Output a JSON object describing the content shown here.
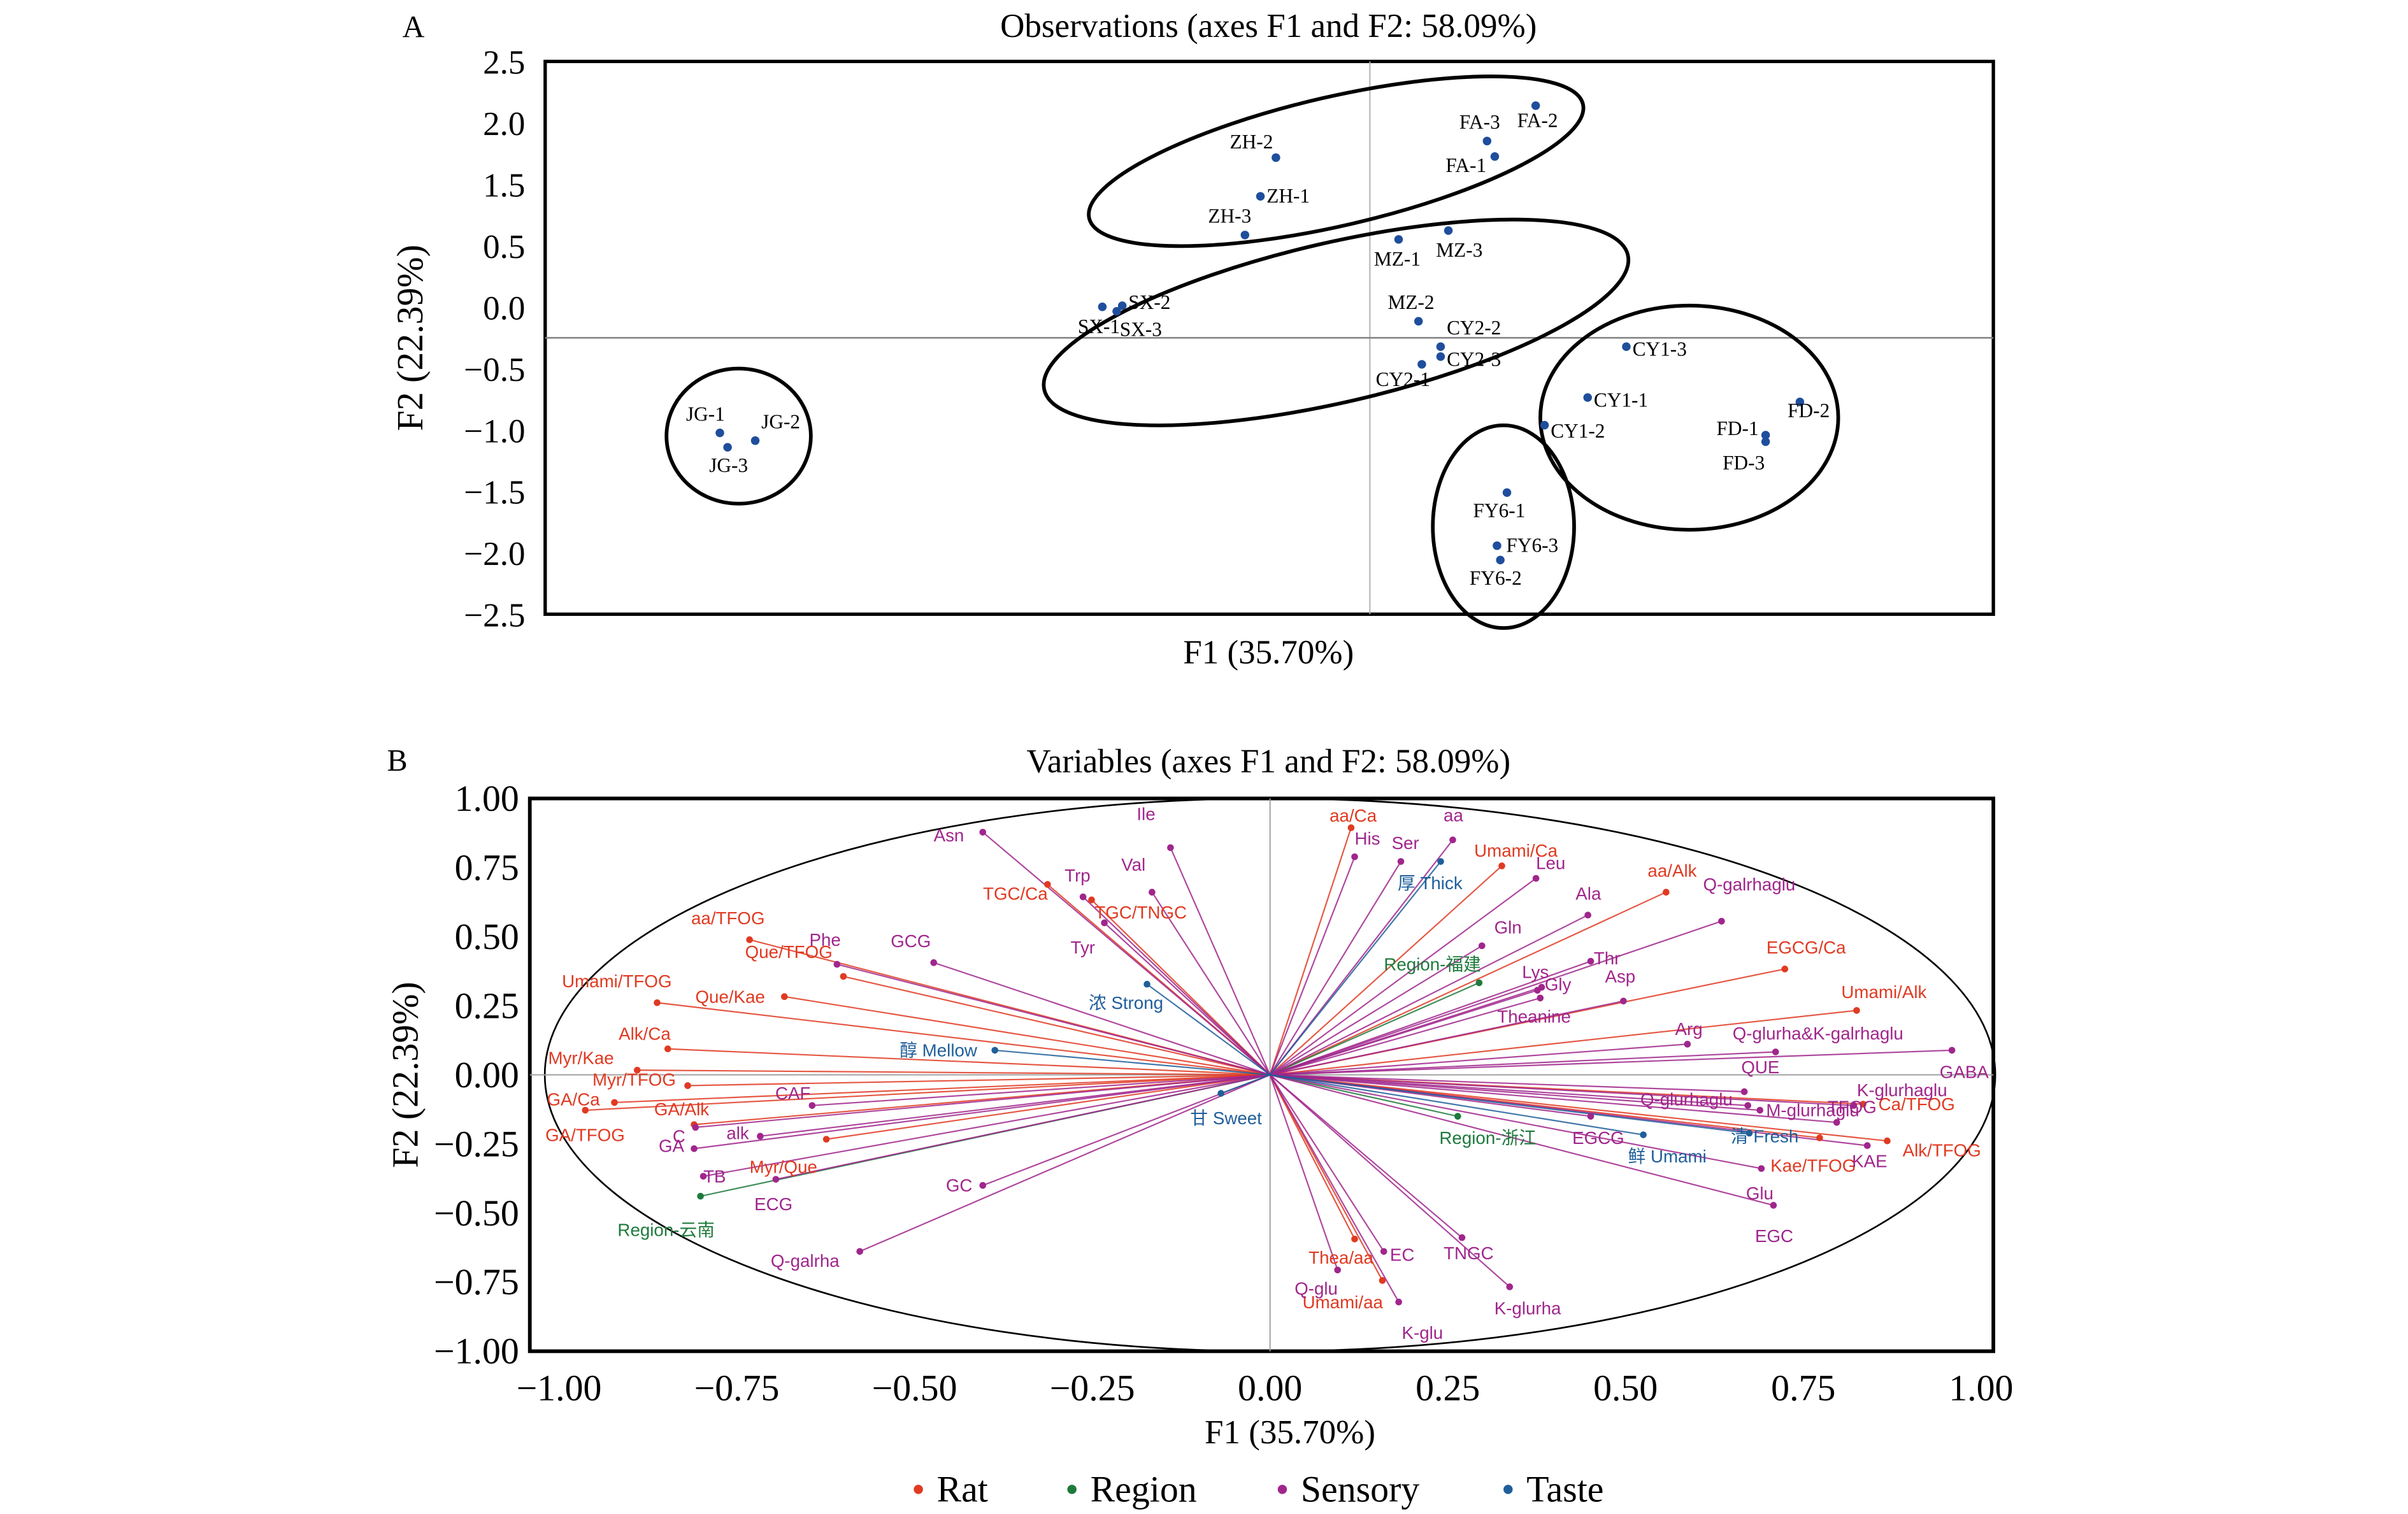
{
  "chart_data": [
    {
      "type": "scatter",
      "panel_label": "A",
      "title": "Observations (axes F1 and F2: 58.09%)",
      "xlabel": "F1 (35.70%)",
      "ylabel": "F2 (22.39%)",
      "ytick_labels": [
        "2.5",
        "2.0",
        "1.5",
        "0.5",
        "0.0",
        "−0.5",
        "−1.0",
        "−1.5",
        "−2.0",
        "−2.5"
      ],
      "ylim": [
        -2.5,
        2.5
      ],
      "xlim": [
        -7.46,
        5.64
      ],
      "point_color": "#1f4e9c",
      "points": [
        {
          "label": "JG-1",
          "x": -5.88,
          "y": -0.86
        },
        {
          "label": "JG-2",
          "x": -5.56,
          "y": -0.93
        },
        {
          "label": "JG-3",
          "x": -5.81,
          "y": -0.99
        },
        {
          "label": "SX-1",
          "x": -2.42,
          "y": 0.28
        },
        {
          "label": "SX-2",
          "x": -2.24,
          "y": 0.29
        },
        {
          "label": "SX-3",
          "x": -2.29,
          "y": 0.24
        },
        {
          "label": "ZH-1",
          "x": -0.99,
          "y": 1.28
        },
        {
          "label": "ZH-2",
          "x": -0.85,
          "y": 1.63
        },
        {
          "label": "ZH-3",
          "x": -1.13,
          "y": 0.93
        },
        {
          "label": "FA-1",
          "x": 1.13,
          "y": 1.64
        },
        {
          "label": "FA-2",
          "x": 1.5,
          "y": 2.1
        },
        {
          "label": "FA-3",
          "x": 1.06,
          "y": 1.78
        },
        {
          "label": "MZ-1",
          "x": 0.26,
          "y": 0.89
        },
        {
          "label": "MZ-2",
          "x": 0.44,
          "y": 0.15
        },
        {
          "label": "MZ-3",
          "x": 0.71,
          "y": 0.97
        },
        {
          "label": "CY2-1",
          "x": 0.47,
          "y": -0.24
        },
        {
          "label": "CY2-2",
          "x": 0.64,
          "y": -0.08
        },
        {
          "label": "CY2-3",
          "x": 0.64,
          "y": -0.17
        },
        {
          "label": "CY1-1",
          "x": 1.97,
          "y": -0.54
        },
        {
          "label": "CY1-2",
          "x": 1.58,
          "y": -0.79
        },
        {
          "label": "CY1-3",
          "x": 2.32,
          "y": -0.08
        },
        {
          "label": "FD-1",
          "x": 3.58,
          "y": -0.88
        },
        {
          "label": "FD-2",
          "x": 3.89,
          "y": -0.58
        },
        {
          "label": "FD-3",
          "x": 3.58,
          "y": -0.94
        },
        {
          "label": "FY6-1",
          "x": 1.24,
          "y": -1.4
        },
        {
          "label": "FY6-2",
          "x": 1.18,
          "y": -2.01
        },
        {
          "label": "FY6-3",
          "x": 1.15,
          "y": -1.88
        }
      ],
      "groups": [
        [
          "JG-1",
          "JG-2",
          "JG-3"
        ],
        [
          "ZH-1",
          "ZH-2",
          "ZH-3",
          "FA-1",
          "FA-2",
          "FA-3"
        ],
        [
          "SX-1",
          "SX-2",
          "SX-3",
          "MZ-1",
          "MZ-2",
          "MZ-3",
          "CY2-1",
          "CY2-2",
          "CY2-3"
        ],
        [
          "CY1-1",
          "CY1-2",
          "CY1-3",
          "FD-1",
          "FD-2",
          "FD-3"
        ],
        [
          "FY6-1",
          "FY6-2",
          "FY6-3"
        ]
      ]
    },
    {
      "type": "scatter",
      "subtype": "correlation-circle",
      "panel_label": "B",
      "title": "Variables (axes F1 and F2: 58.09%)",
      "xlabel": "F1 (35.70%)",
      "ylabel": "F2 (22.39%)",
      "xlim": [
        -1.06,
        1.0
      ],
      "ylim": [
        -1.0,
        1.0
      ],
      "xticks": [
        -1.0,
        -0.75,
        -0.5,
        -0.25,
        0.0,
        0.25,
        0.5,
        0.75,
        1.0
      ],
      "xtick_labels": [
        "−1.00",
        "−0.75",
        "−0.50",
        "−0.25",
        "0.00",
        "0.25",
        "0.50",
        "0.75",
        "1.00"
      ],
      "yticks": [
        1.0,
        0.75,
        0.5,
        0.25,
        0.0,
        -0.25,
        -0.5,
        -0.75,
        -1.0
      ],
      "ytick_labels": [
        "1.00",
        "0.75",
        "0.50",
        "0.25",
        "0.00",
        "−0.25",
        "−0.50",
        "−0.75",
        "−1.00"
      ],
      "legend_position": "bottom",
      "legend": [
        {
          "name": "Rat",
          "color": "#e03a22"
        },
        {
          "name": "Region",
          "color": "#1e7a3c"
        },
        {
          "name": "Sensory",
          "color": "#a0268c"
        },
        {
          "name": "Taste",
          "color": "#1f5f9a"
        }
      ],
      "series": [
        {
          "name": "Rat",
          "color": "#e03a22",
          "points": [
            {
              "label": "aa/Ca",
              "x": 0.114,
              "y": 0.894
            },
            {
              "label": "Umami/Ca",
              "x": 0.326,
              "y": 0.756
            },
            {
              "label": "aa/Alk",
              "x": 0.557,
              "y": 0.661
            },
            {
              "label": "EGCG/Ca",
              "x": 0.724,
              "y": 0.383
            },
            {
              "label": "Umami/Alk",
              "x": 0.825,
              "y": 0.233
            },
            {
              "label": "Ca/TFOG",
              "x": 0.834,
              "y": -0.106
            },
            {
              "label": "Alk/TFOG",
              "x": 0.868,
              "y": -0.239
            },
            {
              "label": "Kae/TFOG",
              "x": 0.773,
              "y": -0.228
            },
            {
              "label": "Thea/aa",
              "x": 0.119,
              "y": -0.594
            },
            {
              "label": "Umami/aa",
              "x": 0.158,
              "y": -0.744
            },
            {
              "label": "TGC/Ca",
              "x": -0.313,
              "y": 0.689
            },
            {
              "label": "TGC/TNGC",
              "x": -0.251,
              "y": 0.633
            },
            {
              "label": "aa/TFOG",
              "x": -0.732,
              "y": 0.489
            },
            {
              "label": "Que/TFOG",
              "x": -0.6,
              "y": 0.356
            },
            {
              "label": "Umami/TFOG",
              "x": -0.862,
              "y": 0.261
            },
            {
              "label": "Que/Kae",
              "x": -0.683,
              "y": 0.283
            },
            {
              "label": "Alk/Ca",
              "x": -0.847,
              "y": 0.094
            },
            {
              "label": "Myr/Kae",
              "x": -0.89,
              "y": 0.017
            },
            {
              "label": "Myr/TFOG",
              "x": -0.819,
              "y": -0.039
            },
            {
              "label": "GA/Ca",
              "x": -0.922,
              "y": -0.1
            },
            {
              "label": "GA/Alk",
              "x": -0.81,
              "y": -0.18
            },
            {
              "label": "GA/TFOG",
              "x": -0.963,
              "y": -0.128
            },
            {
              "label": "Myr/Que",
              "x": -0.624,
              "y": -0.233
            }
          ]
        },
        {
          "name": "Region",
          "color": "#1e7a3c",
          "points": [
            {
              "label": "Region-福建",
              "x": 0.294,
              "y": 0.333
            },
            {
              "label": "Region-浙江",
              "x": 0.264,
              "y": -0.15
            },
            {
              "label": "Region-云南",
              "x": -0.801,
              "y": -0.439
            }
          ]
        },
        {
          "name": "Sensory",
          "color": "#a0268c",
          "points": [
            {
              "label": "Asn",
              "x": -0.404,
              "y": 0.878
            },
            {
              "label": "Ile",
              "x": -0.14,
              "y": 0.822
            },
            {
              "label": "Trp",
              "x": -0.263,
              "y": 0.644
            },
            {
              "label": "Val",
              "x": -0.166,
              "y": 0.661
            },
            {
              "label": "Tyr",
              "x": -0.233,
              "y": 0.55
            },
            {
              "label": "Phe",
              "x": -0.609,
              "y": 0.4
            },
            {
              "label": "GCG",
              "x": -0.473,
              "y": 0.406
            },
            {
              "label": "His",
              "x": 0.119,
              "y": 0.789
            },
            {
              "label": "Ser",
              "x": 0.184,
              "y": 0.772
            },
            {
              "label": "aa",
              "x": 0.257,
              "y": 0.85
            },
            {
              "label": "Leu",
              "x": 0.374,
              "y": 0.711
            },
            {
              "label": "Gln",
              "x": 0.298,
              "y": 0.467
            },
            {
              "label": "Ala",
              "x": 0.447,
              "y": 0.578
            },
            {
              "label": "Thr",
              "x": 0.451,
              "y": 0.411
            },
            {
              "label": "Q-galrhaglu",
              "x": 0.635,
              "y": 0.556
            },
            {
              "label": "Lys",
              "x": 0.376,
              "y": 0.306
            },
            {
              "label": "Gly",
              "x": 0.382,
              "y": 0.317
            },
            {
              "label": "Theanine",
              "x": 0.38,
              "y": 0.278
            },
            {
              "label": "Asp",
              "x": 0.497,
              "y": 0.267
            },
            {
              "label": "Arg",
              "x": 0.587,
              "y": 0.111
            },
            {
              "label": "Q-glurha&K-galrhaglu",
              "x": 0.711,
              "y": 0.083
            },
            {
              "label": "GABA",
              "x": 0.959,
              "y": 0.089
            },
            {
              "label": "QUE",
              "x": 0.667,
              "y": -0.061
            },
            {
              "label": "K-glurhaglu",
              "x": 0.821,
              "y": -0.111
            },
            {
              "label": "Q-glurhaglu",
              "x": 0.672,
              "y": -0.111
            },
            {
              "label": "M-glurhaglu",
              "x": 0.689,
              "y": -0.128
            },
            {
              "label": "TFOG",
              "x": 0.797,
              "y": -0.172
            },
            {
              "label": "KAE",
              "x": 0.84,
              "y": -0.256
            },
            {
              "label": "Glu",
              "x": 0.691,
              "y": -0.339
            },
            {
              "label": "EGC",
              "x": 0.708,
              "y": -0.472
            },
            {
              "label": "EGCG",
              "x": 0.451,
              "y": -0.15
            },
            {
              "label": "TNGC",
              "x": 0.27,
              "y": -0.589
            },
            {
              "label": "K-glurha",
              "x": 0.337,
              "y": -0.767
            },
            {
              "label": "EC",
              "x": 0.16,
              "y": -0.639
            },
            {
              "label": "Q-glu",
              "x": 0.095,
              "y": -0.706
            },
            {
              "label": "K-glu",
              "x": 0.181,
              "y": -0.822
            },
            {
              "label": "CAF",
              "x": -0.644,
              "y": -0.111
            },
            {
              "label": "alk",
              "x": -0.717,
              "y": -0.222
            },
            {
              "label": "C",
              "x": -0.81,
              "y": -0.267
            },
            {
              "label": "GA",
              "x": -0.808,
              "y": -0.19
            },
            {
              "label": "TB",
              "x": -0.797,
              "y": -0.367
            },
            {
              "label": "ECG",
              "x": -0.695,
              "y": -0.378
            },
            {
              "label": "GC",
              "x": -0.404,
              "y": -0.4
            },
            {
              "label": "Q-galrha",
              "x": -0.577,
              "y": -0.639
            }
          ]
        },
        {
          "name": "Taste",
          "color": "#1f5f9a",
          "points": [
            {
              "label": "厚 Thick",
              "x": 0.24,
              "y": 0.772
            },
            {
              "label": "浓 Strong",
              "x": -0.173,
              "y": 0.328
            },
            {
              "label": "醇 Mellow",
              "x": -0.387,
              "y": 0.089
            },
            {
              "label": "甘 Sweet",
              "x": -0.069,
              "y": -0.067
            },
            {
              "label": "鲜 Umami",
              "x": 0.525,
              "y": -0.217
            },
            {
              "label": "清 Fresh",
              "x": 0.674,
              "y": -0.211
            }
          ]
        }
      ]
    }
  ]
}
